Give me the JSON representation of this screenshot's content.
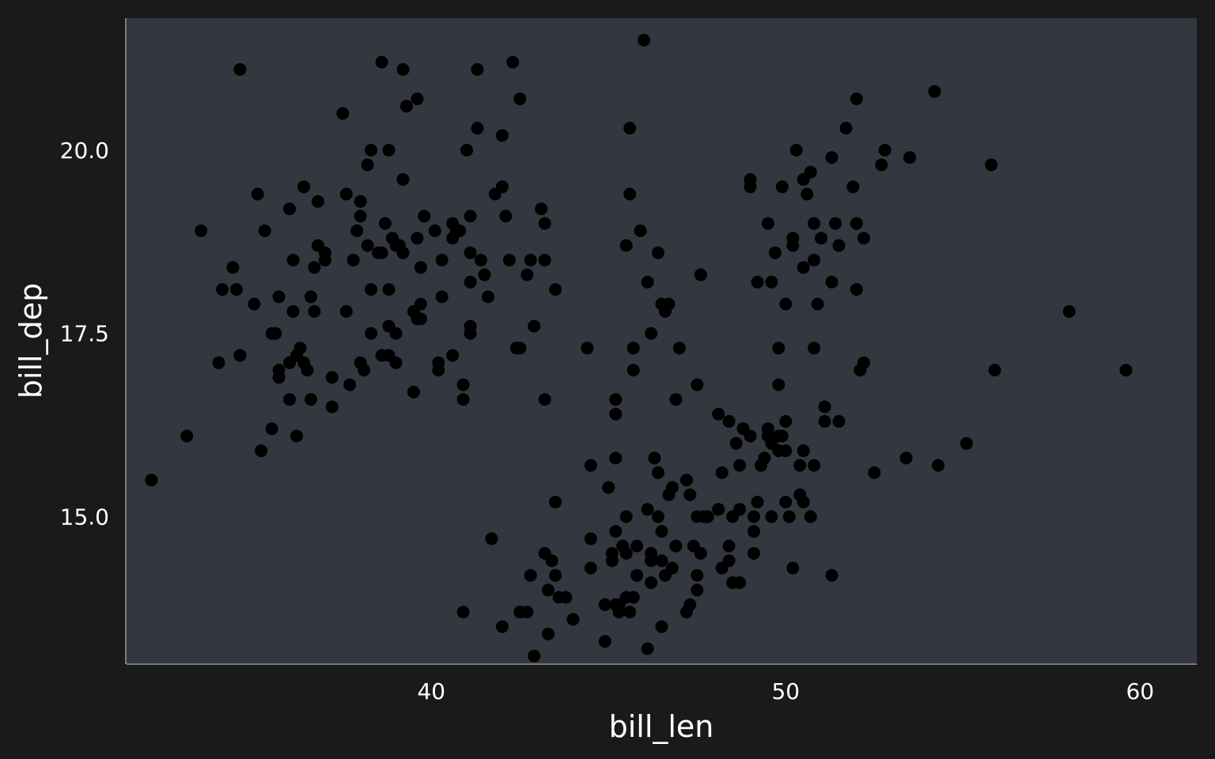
{
  "chart_data": {
    "type": "scatter",
    "xlabel": "bill_len",
    "ylabel": "bill_dep",
    "xlim": [
      31.4,
      61.6
    ],
    "ylim": [
      13.0,
      21.8
    ],
    "xticks": [
      40,
      50,
      60
    ],
    "yticks": [
      15.0,
      17.5,
      20.0
    ],
    "grid": false,
    "colors": {
      "page_bg": "#1a1a1a",
      "panel_bg": "#333740",
      "point": "#000000",
      "text": "#ffffff",
      "axis_line": "#9a9a9a"
    },
    "points": [
      [
        32.1,
        15.5
      ],
      [
        33.1,
        16.1
      ],
      [
        33.5,
        18.9
      ],
      [
        34.0,
        17.1
      ],
      [
        34.1,
        18.1
      ],
      [
        34.4,
        18.4
      ],
      [
        34.5,
        18.1
      ],
      [
        34.6,
        21.1
      ],
      [
        34.6,
        17.2
      ],
      [
        35.0,
        17.9
      ],
      [
        35.1,
        19.4
      ],
      [
        35.2,
        15.9
      ],
      [
        35.3,
        18.9
      ],
      [
        35.5,
        16.2
      ],
      [
        35.5,
        17.5
      ],
      [
        35.6,
        17.5
      ],
      [
        35.7,
        17.0
      ],
      [
        35.7,
        16.9
      ],
      [
        35.7,
        18.0
      ],
      [
        36.0,
        19.2
      ],
      [
        36.0,
        16.6
      ],
      [
        36.0,
        17.1
      ],
      [
        36.1,
        17.8
      ],
      [
        36.1,
        18.5
      ],
      [
        36.2,
        17.2
      ],
      [
        36.2,
        16.1
      ],
      [
        36.3,
        17.3
      ],
      [
        36.4,
        17.1
      ],
      [
        36.4,
        19.5
      ],
      [
        36.5,
        17.0
      ],
      [
        36.6,
        18.0
      ],
      [
        36.6,
        16.6
      ],
      [
        36.7,
        17.8
      ],
      [
        36.7,
        18.4
      ],
      [
        36.8,
        19.3
      ],
      [
        36.8,
        18.7
      ],
      [
        37.0,
        18.5
      ],
      [
        37.0,
        18.6
      ],
      [
        37.2,
        16.5
      ],
      [
        37.2,
        16.9
      ],
      [
        37.6,
        19.4
      ],
      [
        37.6,
        17.8
      ],
      [
        37.5,
        20.5
      ],
      [
        37.7,
        16.8
      ],
      [
        37.8,
        18.5
      ],
      [
        37.9,
        18.9
      ],
      [
        38.0,
        19.3
      ],
      [
        38.0,
        19.1
      ],
      [
        38.0,
        17.1
      ],
      [
        38.1,
        17.0
      ],
      [
        38.2,
        19.8
      ],
      [
        38.2,
        18.7
      ],
      [
        38.3,
        20.0
      ],
      [
        38.3,
        18.1
      ],
      [
        38.3,
        17.5
      ],
      [
        38.5,
        18.6
      ],
      [
        38.6,
        17.2
      ],
      [
        38.6,
        21.2
      ],
      [
        38.6,
        18.6
      ],
      [
        38.7,
        19.0
      ],
      [
        38.8,
        20.0
      ],
      [
        38.8,
        17.6
      ],
      [
        38.8,
        17.2
      ],
      [
        38.8,
        18.1
      ],
      [
        38.9,
        18.8
      ],
      [
        39.0,
        17.5
      ],
      [
        39.0,
        18.7
      ],
      [
        39.0,
        17.1
      ],
      [
        39.1,
        18.7
      ],
      [
        39.2,
        18.6
      ],
      [
        39.2,
        19.6
      ],
      [
        39.2,
        21.1
      ],
      [
        39.3,
        20.6
      ],
      [
        39.5,
        16.7
      ],
      [
        39.5,
        17.8
      ],
      [
        39.6,
        18.8
      ],
      [
        39.6,
        17.7
      ],
      [
        39.6,
        20.7
      ],
      [
        39.7,
        17.7
      ],
      [
        39.7,
        18.4
      ],
      [
        39.7,
        17.9
      ],
      [
        39.8,
        19.1
      ],
      [
        40.1,
        18.9
      ],
      [
        40.2,
        17.0
      ],
      [
        40.2,
        17.1
      ],
      [
        40.3,
        18.0
      ],
      [
        40.3,
        18.5
      ],
      [
        40.6,
        18.8
      ],
      [
        40.6,
        17.2
      ],
      [
        40.6,
        19.0
      ],
      [
        40.7,
        18.9
      ],
      [
        40.8,
        18.9
      ],
      [
        40.9,
        16.6
      ],
      [
        40.9,
        16.8
      ],
      [
        41.0,
        20.0
      ],
      [
        41.1,
        18.6
      ],
      [
        41.1,
        19.1
      ],
      [
        41.1,
        18.2
      ],
      [
        41.1,
        17.6
      ],
      [
        41.1,
        17.5
      ],
      [
        41.3,
        21.1
      ],
      [
        41.3,
        20.3
      ],
      [
        41.4,
        18.5
      ],
      [
        41.5,
        18.3
      ],
      [
        41.6,
        18.0
      ],
      [
        41.8,
        19.4
      ],
      [
        42.0,
        20.2
      ],
      [
        42.0,
        19.5
      ],
      [
        42.1,
        19.1
      ],
      [
        42.2,
        18.5
      ],
      [
        42.3,
        21.2
      ],
      [
        42.4,
        17.3
      ],
      [
        42.5,
        20.7
      ],
      [
        42.5,
        17.3
      ],
      [
        42.7,
        18.3
      ],
      [
        42.8,
        18.5
      ],
      [
        42.9,
        17.6
      ],
      [
        43.1,
        19.2
      ],
      [
        43.2,
        19.0
      ],
      [
        43.2,
        18.5
      ],
      [
        43.2,
        16.6
      ],
      [
        43.5,
        18.1
      ],
      [
        45.6,
        20.3
      ],
      [
        45.5,
        18.7
      ],
      [
        45.6,
        19.4
      ],
      [
        45.2,
        16.6
      ],
      [
        45.2,
        16.4
      ],
      [
        45.7,
        17.0
      ],
      [
        45.7,
        17.3
      ],
      [
        45.9,
        18.9
      ],
      [
        46.0,
        21.5
      ],
      [
        46.1,
        18.2
      ],
      [
        46.2,
        17.5
      ],
      [
        46.4,
        18.6
      ],
      [
        46.5,
        17.9
      ],
      [
        46.6,
        17.8
      ],
      [
        46.7,
        17.9
      ],
      [
        46.9,
        16.6
      ],
      [
        47.0,
        17.3
      ],
      [
        47.5,
        16.8
      ],
      [
        47.6,
        18.3
      ],
      [
        49.0,
        19.5
      ],
      [
        49.0,
        19.6
      ],
      [
        49.2,
        18.2
      ],
      [
        49.5,
        19.0
      ],
      [
        49.6,
        18.2
      ],
      [
        49.7,
        18.6
      ],
      [
        49.8,
        17.3
      ],
      [
        49.8,
        16.8
      ],
      [
        49.9,
        19.5
      ],
      [
        50.0,
        17.9
      ],
      [
        50.2,
        18.8
      ],
      [
        50.2,
        18.7
      ],
      [
        50.3,
        20.0
      ],
      [
        50.5,
        18.4
      ],
      [
        50.5,
        19.6
      ],
      [
        50.6,
        19.4
      ],
      [
        50.7,
        19.7
      ],
      [
        50.8,
        19.0
      ],
      [
        50.8,
        18.5
      ],
      [
        50.8,
        17.3
      ],
      [
        50.9,
        17.9
      ],
      [
        51.0,
        18.8
      ],
      [
        51.3,
        19.9
      ],
      [
        51.3,
        18.2
      ],
      [
        51.4,
        19.0
      ],
      [
        51.5,
        18.7
      ],
      [
        51.7,
        20.3
      ],
      [
        51.9,
        19.5
      ],
      [
        52.0,
        18.1
      ],
      [
        52.0,
        19.0
      ],
      [
        52.0,
        20.7
      ],
      [
        52.2,
        18.8
      ],
      [
        52.7,
        19.8
      ],
      [
        52.8,
        20.0
      ],
      [
        53.5,
        19.9
      ],
      [
        54.2,
        20.8
      ],
      [
        55.8,
        19.8
      ],
      [
        58.0,
        17.8
      ],
      [
        40.9,
        13.7
      ],
      [
        41.7,
        14.7
      ],
      [
        42.0,
        13.5
      ],
      [
        42.5,
        13.7
      ],
      [
        42.7,
        13.7
      ],
      [
        42.8,
        14.2
      ],
      [
        42.9,
        13.1
      ],
      [
        43.2,
        14.5
      ],
      [
        43.3,
        14.0
      ],
      [
        43.3,
        13.4
      ],
      [
        43.4,
        14.4
      ],
      [
        43.5,
        14.2
      ],
      [
        43.5,
        15.2
      ],
      [
        43.6,
        13.9
      ],
      [
        43.8,
        13.9
      ],
      [
        44.0,
        13.6
      ],
      [
        44.4,
        17.3
      ],
      [
        44.5,
        14.3
      ],
      [
        44.5,
        15.7
      ],
      [
        44.5,
        14.7
      ],
      [
        44.9,
        13.8
      ],
      [
        44.9,
        13.3
      ],
      [
        45.0,
        15.4
      ],
      [
        45.1,
        14.5
      ],
      [
        45.1,
        14.4
      ],
      [
        45.2,
        13.8
      ],
      [
        45.2,
        14.8
      ],
      [
        45.2,
        15.8
      ],
      [
        45.3,
        13.7
      ],
      [
        45.3,
        13.8
      ],
      [
        45.4,
        14.6
      ],
      [
        45.4,
        14.6
      ],
      [
        45.5,
        13.9
      ],
      [
        45.5,
        14.5
      ],
      [
        45.5,
        15.0
      ],
      [
        45.6,
        13.7
      ],
      [
        45.7,
        13.9
      ],
      [
        45.8,
        14.6
      ],
      [
        45.8,
        14.2
      ],
      [
        46.1,
        13.2
      ],
      [
        46.1,
        15.1
      ],
      [
        46.2,
        14.1
      ],
      [
        46.2,
        14.4
      ],
      [
        46.2,
        14.5
      ],
      [
        46.3,
        15.8
      ],
      [
        46.4,
        15.6
      ],
      [
        46.4,
        15.0
      ],
      [
        46.5,
        14.4
      ],
      [
        46.5,
        14.8
      ],
      [
        46.5,
        13.5
      ],
      [
        46.6,
        14.2
      ],
      [
        46.7,
        15.3
      ],
      [
        46.8,
        14.3
      ],
      [
        46.8,
        15.4
      ],
      [
        46.9,
        14.6
      ],
      [
        47.2,
        13.7
      ],
      [
        47.2,
        15.5
      ],
      [
        47.3,
        13.8
      ],
      [
        47.3,
        15.3
      ],
      [
        47.4,
        14.6
      ],
      [
        47.5,
        14.2
      ],
      [
        47.5,
        14.0
      ],
      [
        47.5,
        15.0
      ],
      [
        47.6,
        14.5
      ],
      [
        47.7,
        15.0
      ],
      [
        47.8,
        15.0
      ],
      [
        48.1,
        15.1
      ],
      [
        48.1,
        16.4
      ],
      [
        48.2,
        14.3
      ],
      [
        48.2,
        15.6
      ],
      [
        48.4,
        14.6
      ],
      [
        48.4,
        14.4
      ],
      [
        48.4,
        16.3
      ],
      [
        48.5,
        14.1
      ],
      [
        48.5,
        15.0
      ],
      [
        48.6,
        16.0
      ],
      [
        48.7,
        14.1
      ],
      [
        48.7,
        15.1
      ],
      [
        48.7,
        15.7
      ],
      [
        48.8,
        16.2
      ],
      [
        49.0,
        16.1
      ],
      [
        49.1,
        14.5
      ],
      [
        49.1,
        14.8
      ],
      [
        49.1,
        15.0
      ],
      [
        49.2,
        15.2
      ],
      [
        49.3,
        15.7
      ],
      [
        49.4,
        15.8
      ],
      [
        49.5,
        16.1
      ],
      [
        49.5,
        16.2
      ],
      [
        49.6,
        16.0
      ],
      [
        49.6,
        15.0
      ],
      [
        49.8,
        15.9
      ],
      [
        49.8,
        16.1
      ],
      [
        49.9,
        16.1
      ],
      [
        50.0,
        15.2
      ],
      [
        50.0,
        15.9
      ],
      [
        50.0,
        16.3
      ],
      [
        50.1,
        15.0
      ],
      [
        50.2,
        14.3
      ],
      [
        50.4,
        15.3
      ],
      [
        50.4,
        15.7
      ],
      [
        50.5,
        15.2
      ],
      [
        50.5,
        15.9
      ],
      [
        50.7,
        15.0
      ],
      [
        50.8,
        15.7
      ],
      [
        51.1,
        16.3
      ],
      [
        51.1,
        16.5
      ],
      [
        51.3,
        14.2
      ],
      [
        51.5,
        16.3
      ],
      [
        52.1,
        17.0
      ],
      [
        52.2,
        17.1
      ],
      [
        52.5,
        15.6
      ],
      [
        53.4,
        15.8
      ],
      [
        54.3,
        15.7
      ],
      [
        55.1,
        16.0
      ],
      [
        55.9,
        17.0
      ],
      [
        59.6,
        17.0
      ]
    ]
  }
}
